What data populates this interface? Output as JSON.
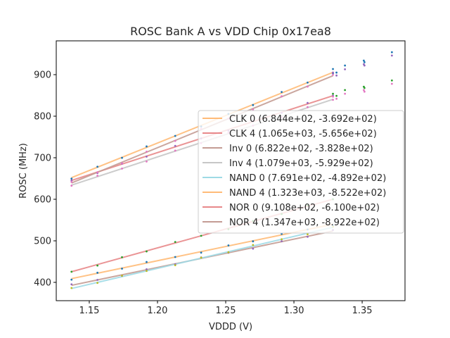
{
  "chart_data": {
    "type": "scatter",
    "title": "ROSC Bank A vs VDD Chip 0x17ea8",
    "xlabel": "VDDD (V)",
    "ylabel": "ROSC (MHz)",
    "xlim": [
      1.1258,
      1.3814
    ],
    "ylim": [
      355.9,
      981.4
    ],
    "xticks": [
      1.15,
      1.2,
      1.25,
      1.3,
      1.35
    ],
    "xtick_labels": [
      "1.15",
      "1.20",
      "1.25",
      "1.30",
      "1.35"
    ],
    "yticks": [
      400,
      500,
      600,
      700,
      800,
      900
    ],
    "ytick_labels": [
      "400",
      "500",
      "600",
      "700",
      "800",
      "900"
    ],
    "grid": false,
    "legend_position": "center-right",
    "fit_range": [
      1.137,
      1.3286
    ],
    "series": [
      {
        "name": "CLK 0",
        "label": "CLK 0 (6.844e+02, -3.692e+02)",
        "slope": 684.4,
        "intercept": -369.2,
        "color": "#ffbb78",
        "point_color": "#1f77b4"
      },
      {
        "name": "CLK 4",
        "label": "CLK 4 (1.065e+03, -5.656e+02)",
        "slope": 1065.0,
        "intercept": -565.6,
        "color": "#e8888a",
        "point_color": "#9467bd"
      },
      {
        "name": "Inv 0",
        "label": "Inv 0 (6.822e+02, -3.828e+02)",
        "slope": 682.2,
        "intercept": -382.8,
        "color": "#c49c94",
        "point_color": "#9467bd"
      },
      {
        "name": "Inv 4",
        "label": "Inv 4 (1.079e+03, -5.929e+02)",
        "slope": 1079.0,
        "intercept": -592.9,
        "color": "#c7c7c7",
        "point_color": "#e377c2"
      },
      {
        "name": "NAND 0",
        "label": "NAND 0 (7.691e+02, -4.892e+02)",
        "slope": 769.1,
        "intercept": -489.2,
        "color": "#9edae5",
        "point_color": "#bcbd22"
      },
      {
        "name": "NAND 4",
        "label": "NAND 4 (1.323e+03, -8.522e+02)",
        "slope": 1323.0,
        "intercept": -852.2,
        "color": "#ffbb78",
        "point_color": "#1f77b4"
      },
      {
        "name": "NOR 0",
        "label": "NOR 0 (9.108e+02, -6.100e+02)",
        "slope": 910.8,
        "intercept": -610.0,
        "color": "#e8888a",
        "point_color": "#2ca02c"
      },
      {
        "name": "NOR 4",
        "label": "NOR 4 (1.347e+03, -8.922e+02)",
        "slope": 1347.0,
        "intercept": -892.2,
        "color": "#c49c94",
        "point_color": "#e377c2"
      }
    ],
    "measured_x": [
      1.137,
      1.156,
      1.174,
      1.192,
      1.213,
      1.232,
      1.252,
      1.27,
      1.291,
      1.31,
      1.3286
    ],
    "extra_points": [
      {
        "x": 1.3286,
        "y": 913.6,
        "color": "#1f77b4"
      },
      {
        "x": 1.3286,
        "y": 905.0,
        "color": "#9467bd"
      },
      {
        "x": 1.3312,
        "y": 905.0,
        "color": "#1f77b4"
      },
      {
        "x": 1.3312,
        "y": 898.0,
        "color": "#9467bd"
      },
      {
        "x": 1.3374,
        "y": 922.0,
        "color": "#1f77b4"
      },
      {
        "x": 1.3374,
        "y": 913.0,
        "color": "#9467bd"
      },
      {
        "x": 1.3512,
        "y": 934.0,
        "color": "#1f77b4"
      },
      {
        "x": 1.3517,
        "y": 930.0,
        "color": "#1f77b4"
      },
      {
        "x": 1.3512,
        "y": 925.0,
        "color": "#9467bd"
      },
      {
        "x": 1.3517,
        "y": 922.0,
        "color": "#9467bd"
      },
      {
        "x": 1.3718,
        "y": 954.0,
        "color": "#1f77b4"
      },
      {
        "x": 1.3718,
        "y": 946.0,
        "color": "#9467bd"
      },
      {
        "x": 1.3286,
        "y": 854.0,
        "color": "#2ca02c"
      },
      {
        "x": 1.3286,
        "y": 847.0,
        "color": "#e377c2"
      },
      {
        "x": 1.3312,
        "y": 849.0,
        "color": "#2ca02c"
      },
      {
        "x": 1.3312,
        "y": 842.0,
        "color": "#e377c2"
      },
      {
        "x": 1.3374,
        "y": 863.0,
        "color": "#2ca02c"
      },
      {
        "x": 1.3374,
        "y": 854.0,
        "color": "#e377c2"
      },
      {
        "x": 1.3512,
        "y": 871.0,
        "color": "#2ca02c"
      },
      {
        "x": 1.3517,
        "y": 868.0,
        "color": "#2ca02c"
      },
      {
        "x": 1.3512,
        "y": 863.0,
        "color": "#e377c2"
      },
      {
        "x": 1.3517,
        "y": 859.0,
        "color": "#e377c2"
      },
      {
        "x": 1.3718,
        "y": 886.0,
        "color": "#2ca02c"
      },
      {
        "x": 1.3718,
        "y": 878.0,
        "color": "#e377c2"
      }
    ]
  }
}
